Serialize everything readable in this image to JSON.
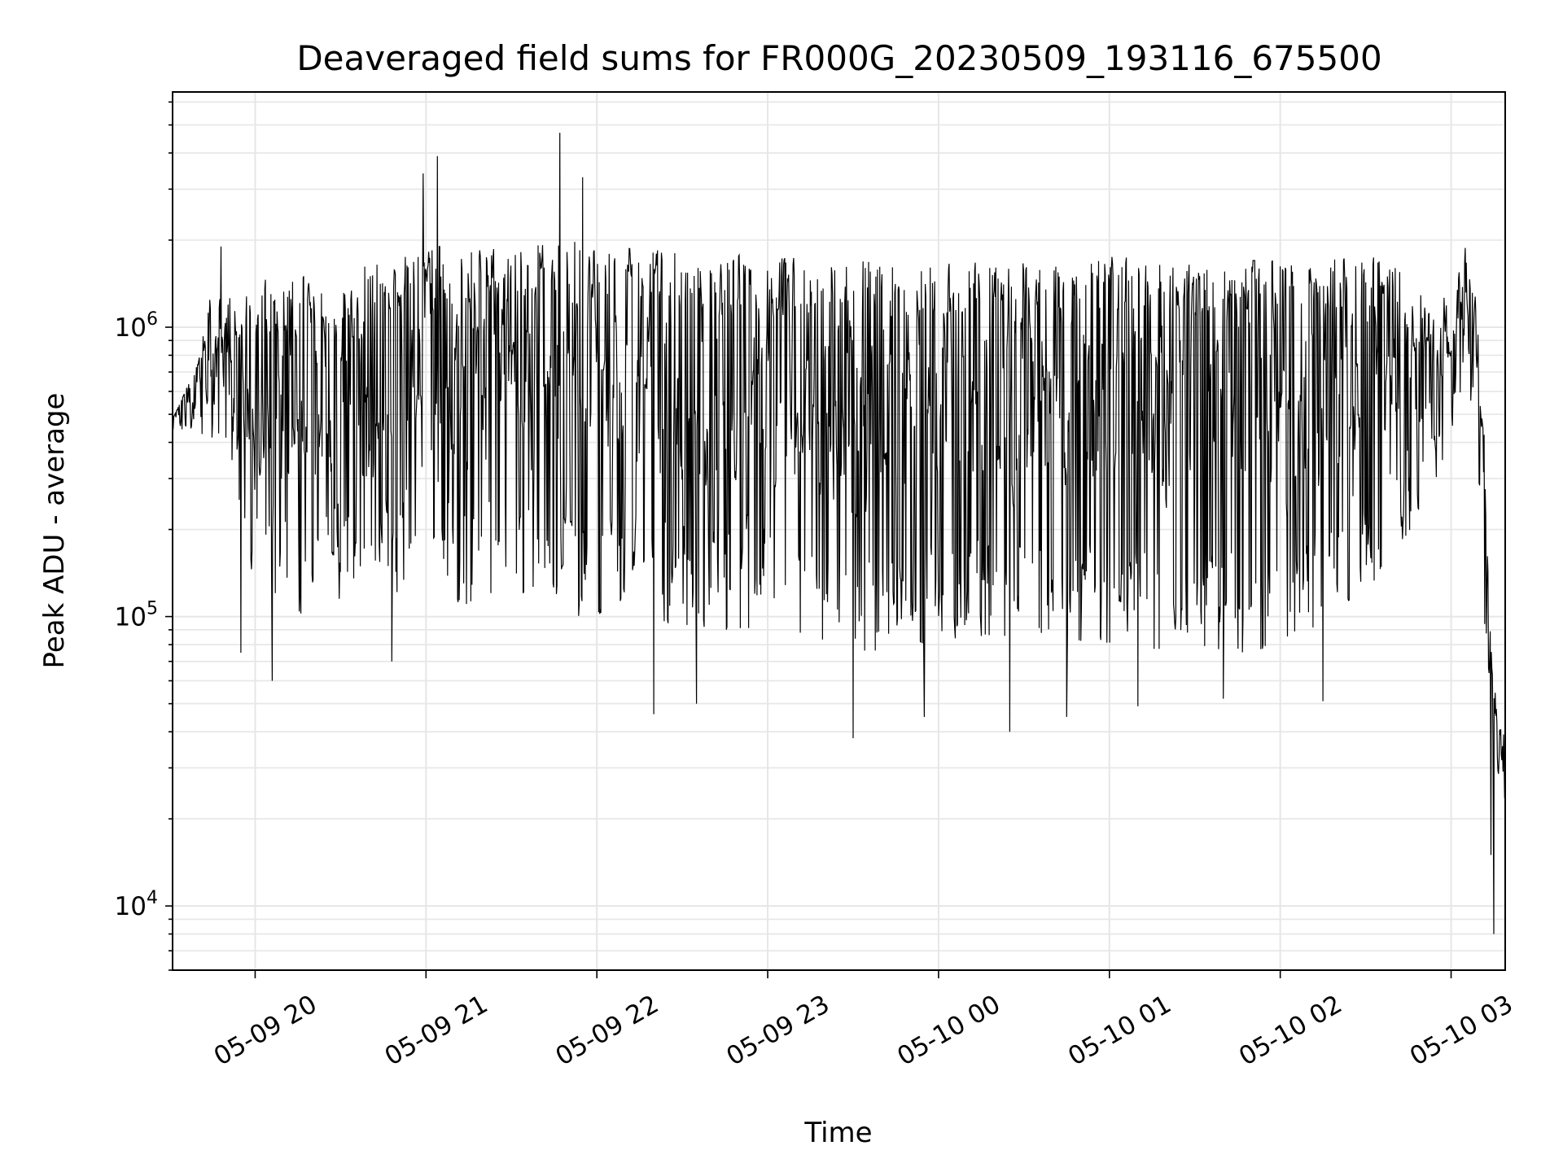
{
  "chart_data": {
    "type": "line",
    "title": "Deaveraged field sums for FR000G_20230509_193116_675500",
    "xlabel": "Time",
    "ylabel": "Peak ADU - average",
    "yscale": "log",
    "grid": true,
    "line_color": "#000000",
    "grid_color": "#e6e6e6",
    "x_range": [
      "2023-05-09 19:31",
      "2023-05-10 03:19"
    ],
    "ylim": [
      6000,
      6500000
    ],
    "x_ticks": [
      {
        "t": "2023-05-09 20:00",
        "label": "05-09 20"
      },
      {
        "t": "2023-05-09 21:00",
        "label": "05-09 21"
      },
      {
        "t": "2023-05-09 22:00",
        "label": "05-09 22"
      },
      {
        "t": "2023-05-09 23:00",
        "label": "05-09 23"
      },
      {
        "t": "2023-05-10 00:00",
        "label": "05-10 00"
      },
      {
        "t": "2023-05-10 01:00",
        "label": "05-10 01"
      },
      {
        "t": "2023-05-10 02:00",
        "label": "05-10 02"
      },
      {
        "t": "2023-05-10 03:00",
        "label": "05-10 03"
      }
    ],
    "y_ticks": [
      {
        "value": 10000,
        "base": "10",
        "exp": "4"
      },
      {
        "value": 100000,
        "base": "10",
        "exp": "5"
      },
      {
        "value": 1000000,
        "base": "10",
        "exp": "6"
      }
    ],
    "series": [
      {
        "style": "envelope",
        "upper": [
          {
            "t": "2023-05-09 19:31",
            "y": 480000
          },
          {
            "t": "2023-05-09 19:40",
            "y": 750000
          },
          {
            "t": "2023-05-09 19:45",
            "y": 1400000
          },
          {
            "t": "2023-05-09 19:50",
            "y": 1250000
          },
          {
            "t": "2023-05-09 20:00",
            "y": 1500000
          },
          {
            "t": "2023-05-09 20:20",
            "y": 1500000
          },
          {
            "t": "2023-05-09 20:35",
            "y": 1600000
          },
          {
            "t": "2023-05-09 20:50",
            "y": 1700000
          },
          {
            "t": "2023-05-09 21:00",
            "y": 2000000
          },
          {
            "t": "2023-05-09 21:10",
            "y": 1800000
          },
          {
            "t": "2023-05-09 21:30",
            "y": 1900000
          },
          {
            "t": "2023-05-09 21:50",
            "y": 2000000
          },
          {
            "t": "2023-05-09 22:10",
            "y": 1900000
          },
          {
            "t": "2023-05-09 22:40",
            "y": 1800000
          },
          {
            "t": "2023-05-09 23:00",
            "y": 1750000
          },
          {
            "t": "2023-05-09 23:30",
            "y": 1700000
          },
          {
            "t": "2023-05-10 00:00",
            "y": 1650000
          },
          {
            "t": "2023-05-10 00:30",
            "y": 1700000
          },
          {
            "t": "2023-05-10 01:00",
            "y": 1750000
          },
          {
            "t": "2023-05-10 01:30",
            "y": 1700000
          },
          {
            "t": "2023-05-10 02:00",
            "y": 1700000
          },
          {
            "t": "2023-05-10 02:40",
            "y": 1750000
          },
          {
            "t": "2023-05-10 02:55",
            "y": 1100000
          },
          {
            "t": "2023-05-10 03:05",
            "y": 1900000
          },
          {
            "t": "2023-05-10 03:09",
            "y": 1200000
          },
          {
            "t": "2023-05-10 03:12",
            "y": 400000
          },
          {
            "t": "2023-05-10 03:14",
            "y": 100000
          },
          {
            "t": "2023-05-10 03:16",
            "y": 50000
          },
          {
            "t": "2023-05-10 03:19",
            "y": 40000
          }
        ],
        "lower": [
          {
            "t": "2023-05-09 19:31",
            "y": 440000
          },
          {
            "t": "2023-05-09 19:40",
            "y": 450000
          },
          {
            "t": "2023-05-09 19:47",
            "y": 250000
          },
          {
            "t": "2023-05-09 19:55",
            "y": 170000
          },
          {
            "t": "2023-05-09 20:05",
            "y": 110000
          },
          {
            "t": "2023-05-09 20:20",
            "y": 100000
          },
          {
            "t": "2023-05-09 20:35",
            "y": 120000
          },
          {
            "t": "2023-05-09 20:50",
            "y": 120000
          },
          {
            "t": "2023-05-09 21:00",
            "y": 200000
          },
          {
            "t": "2023-05-09 21:10",
            "y": 100000
          },
          {
            "t": "2023-05-09 21:30",
            "y": 120000
          },
          {
            "t": "2023-05-09 21:50",
            "y": 100000
          },
          {
            "t": "2023-05-09 22:10",
            "y": 100000
          },
          {
            "t": "2023-05-09 22:40",
            "y": 90000
          },
          {
            "t": "2023-05-09 23:00",
            "y": 90000
          },
          {
            "t": "2023-05-09 23:30",
            "y": 75000
          },
          {
            "t": "2023-05-10 00:00",
            "y": 80000
          },
          {
            "t": "2023-05-10 00:30",
            "y": 85000
          },
          {
            "t": "2023-05-10 01:00",
            "y": 80000
          },
          {
            "t": "2023-05-10 01:30",
            "y": 75000
          },
          {
            "t": "2023-05-10 02:00",
            "y": 75000
          },
          {
            "t": "2023-05-10 02:40",
            "y": 150000
          },
          {
            "t": "2023-05-10 02:55",
            "y": 300000
          },
          {
            "t": "2023-05-10 03:05",
            "y": 600000
          },
          {
            "t": "2023-05-10 03:09",
            "y": 350000
          },
          {
            "t": "2023-05-10 03:12",
            "y": 80000
          },
          {
            "t": "2023-05-10 03:14",
            "y": 25000
          },
          {
            "t": "2023-05-10 03:16",
            "y": 22000
          },
          {
            "t": "2023-05-10 03:19",
            "y": 20000
          }
        ],
        "spikes": [
          {
            "t": "2023-05-09 19:48",
            "y": 1900000
          },
          {
            "t": "2023-05-09 19:55",
            "y": 75000
          },
          {
            "t": "2023-05-09 20:06",
            "y": 60000
          },
          {
            "t": "2023-05-09 20:48",
            "y": 70000
          },
          {
            "t": "2023-05-09 20:59",
            "y": 3400000
          },
          {
            "t": "2023-05-09 21:04",
            "y": 3900000
          },
          {
            "t": "2023-05-09 21:47",
            "y": 4700000
          },
          {
            "t": "2023-05-09 21:55",
            "y": 3300000
          },
          {
            "t": "2023-05-09 22:20",
            "y": 46000
          },
          {
            "t": "2023-05-09 22:35",
            "y": 50000
          },
          {
            "t": "2023-05-09 23:30",
            "y": 38000
          },
          {
            "t": "2023-05-09 23:55",
            "y": 45000
          },
          {
            "t": "2023-05-10 00:25",
            "y": 40000
          },
          {
            "t": "2023-05-10 00:45",
            "y": 45000
          },
          {
            "t": "2023-05-10 01:10",
            "y": 49000
          },
          {
            "t": "2023-05-10 01:40",
            "y": 52000
          },
          {
            "t": "2023-05-10 02:15",
            "y": 51000
          },
          {
            "t": "2023-05-10 03:15",
            "y": 8000
          },
          {
            "t": "2023-05-10 03:14",
            "y": 15000
          }
        ]
      }
    ]
  }
}
